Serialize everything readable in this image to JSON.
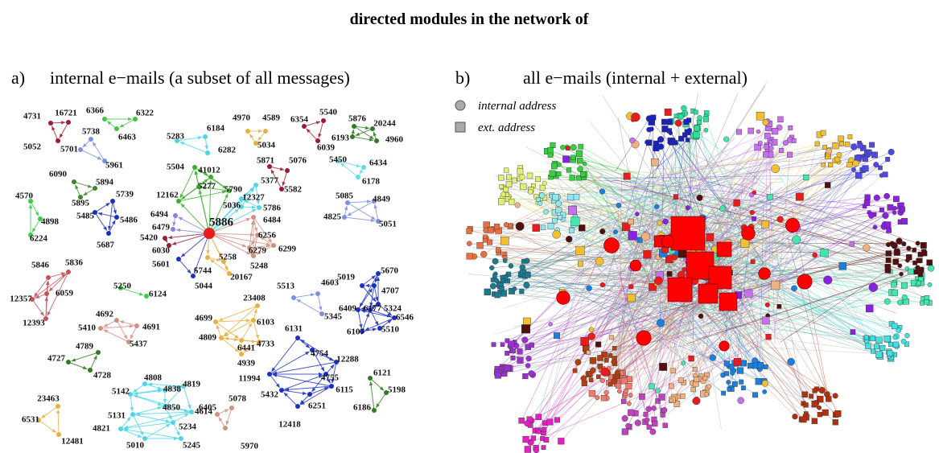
{
  "title": "directed modules in the network of",
  "panel_a": {
    "label": "a)",
    "title": "internal e−mails (a subset of all messages)",
    "clusters": [
      {
        "color": "#9b1b30",
        "nodes": [
          "4731",
          "16721",
          "5052"
        ]
      },
      {
        "color": "#3ec83e",
        "nodes": [
          "6366",
          "6322",
          "6463"
        ]
      },
      {
        "color": "#7b8fe0",
        "nodes": [
          "5738",
          "5701",
          "5961"
        ]
      },
      {
        "color": "#3c8a25",
        "nodes": [
          "6090",
          "5894",
          "5895"
        ]
      },
      {
        "color": "#34d040",
        "nodes": [
          "4570",
          "4898",
          "6224"
        ]
      },
      {
        "color": "#1a2fc0",
        "nodes": [
          "5739",
          "5486",
          "5485",
          "5687"
        ]
      },
      {
        "color": "#4cd6e6",
        "nodes": [
          "5283",
          "6184",
          "6282"
        ]
      },
      {
        "color": "#e8b040",
        "nodes": [
          "4970",
          "4589",
          "5034"
        ]
      },
      {
        "color": "#9b1b30",
        "nodes": [
          "6354",
          "5540",
          "6039"
        ]
      },
      {
        "color": "#2f7d22",
        "nodes": [
          "5876",
          "20244",
          "6193",
          "4960"
        ]
      },
      {
        "color": "#60dde8",
        "nodes": [
          "5450",
          "6434",
          "6178"
        ]
      },
      {
        "color": "#7b8fe0",
        "nodes": [
          "5085",
          "4849",
          "4825",
          "5051"
        ]
      },
      {
        "color": "#9b1b30",
        "nodes": [
          "5871",
          "5076",
          "5582"
        ]
      },
      {
        "color": "#e81c1c",
        "nodes": [
          "5886"
        ]
      },
      {
        "color": "#3cb02c",
        "nodes": [
          "5504",
          "41012",
          "5277",
          "12162",
          "5790"
        ]
      },
      {
        "color": "#4cd6e6",
        "nodes": [
          "5377",
          "12327",
          "5036",
          "5786"
        ]
      },
      {
        "color": "#8a80e0",
        "nodes": [
          "6494",
          "6479"
        ]
      },
      {
        "color": "#9b1b30",
        "nodes": [
          "5420",
          "6030"
        ]
      },
      {
        "color": "#2030c0",
        "nodes": [
          "5601",
          "5044"
        ]
      },
      {
        "color": "#e8b040",
        "nodes": [
          "5744",
          "5258",
          "20167"
        ]
      },
      {
        "color": "#d09080",
        "nodes": [
          "6484",
          "6256",
          "6279",
          "6299",
          "5248"
        ]
      },
      {
        "color": "#c8505a",
        "nodes": [
          "5846",
          "5836",
          "6059",
          "12357",
          "12393"
        ]
      },
      {
        "color": "#34d040",
        "nodes": [
          "5250",
          "6124"
        ]
      },
      {
        "color": "#d09080",
        "nodes": [
          "4692",
          "5410",
          "4691",
          "5437"
        ]
      },
      {
        "color": "#2f7d22",
        "nodes": [
          "4789",
          "4727",
          "4728"
        ]
      },
      {
        "color": "#4cd6e6",
        "nodes": [
          "4808",
          "4838",
          "4819",
          "5142",
          "4850",
          "4614",
          "5131",
          "5234",
          "4821",
          "5010",
          "5245"
        ]
      },
      {
        "color": "#e8b040",
        "nodes": [
          "23463",
          "6531",
          "12481"
        ]
      },
      {
        "color": "#d09080",
        "nodes": [
          "6405",
          "5078",
          "5970"
        ]
      },
      {
        "color": "#7b8fe0",
        "nodes": [
          "5513",
          "4603",
          "5345"
        ]
      },
      {
        "color": "#e8b040",
        "nodes": [
          "23408",
          "4699",
          "6103",
          "4809",
          "6441",
          "4733",
          "4939"
        ]
      },
      {
        "color": "#1a2fc0",
        "nodes": [
          "6131",
          "4754",
          "12288",
          "11994",
          "4755",
          "6115",
          "5432",
          "6251",
          "12418"
        ]
      },
      {
        "color": "#1a2fc0",
        "nodes": [
          "5019",
          "5670",
          "4707",
          "5324",
          "6409",
          "6177",
          "6546",
          "6107",
          "5510"
        ]
      },
      {
        "color": "#2f7d22",
        "nodes": [
          "6121",
          "5198",
          "6186"
        ]
      }
    ]
  },
  "panel_b": {
    "label": "b)",
    "title": "all e−mails (internal + external)",
    "legend": [
      "internal address",
      "ext. address"
    ]
  }
}
